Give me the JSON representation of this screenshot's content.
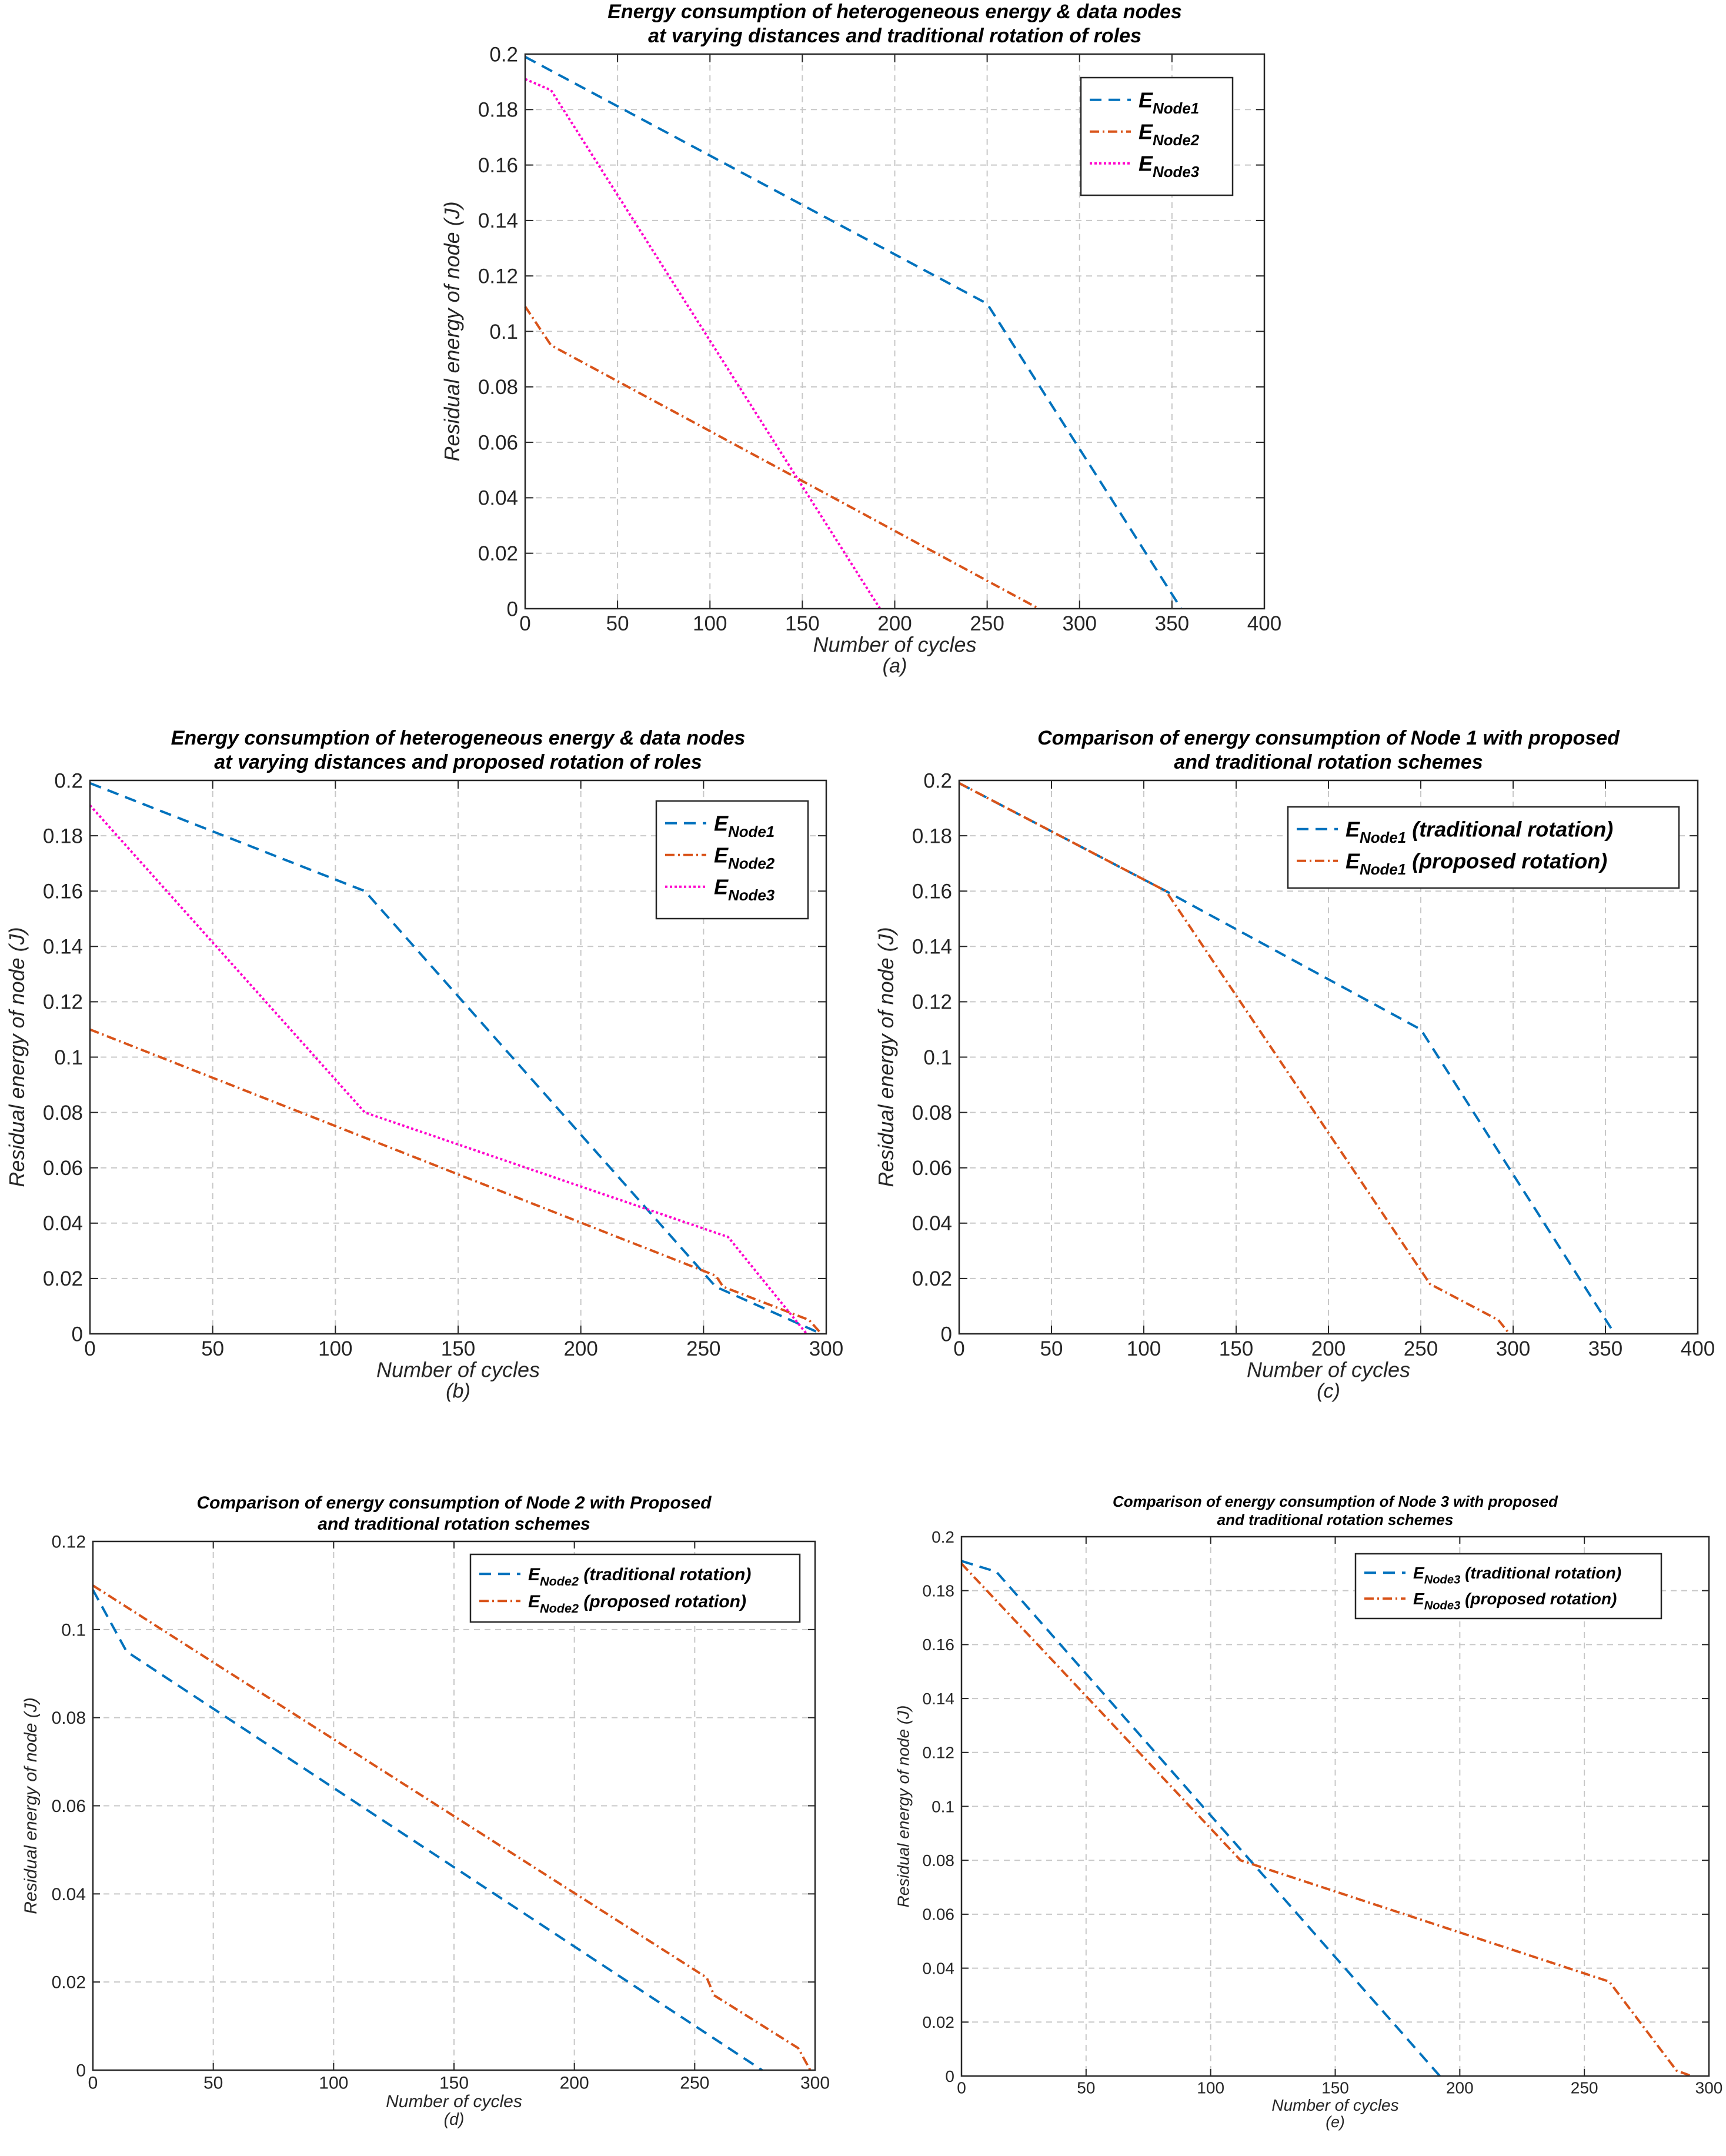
{
  "chart_data": [
    {
      "id": "a",
      "type": "line",
      "title": [
        "Energy consumption of heterogeneous energy & data nodes",
        "at varying distances and traditional rotation of roles"
      ],
      "xlabel": "Number of cycles",
      "ylabel": "Residual energy of node (J)",
      "sublabel": "(a)",
      "xlim": [
        0,
        400
      ],
      "ylim": [
        0,
        0.2
      ],
      "xticks": [
        "0",
        "50",
        "100",
        "150",
        "200",
        "250",
        "300",
        "350",
        "400"
      ],
      "xtick_values": [
        0,
        50,
        100,
        150,
        200,
        250,
        300,
        350,
        400
      ],
      "yticks": [
        "0",
        "0.02",
        "0.04",
        "0.06",
        "0.08",
        "0.1",
        "0.12",
        "0.14",
        "0.16",
        "0.18",
        "0.2"
      ],
      "ytick_values": [
        0,
        0.02,
        0.04,
        0.06,
        0.08,
        0.1,
        0.12,
        0.14,
        0.16,
        0.18,
        0.2
      ],
      "grid": true,
      "legend_position": "top-right",
      "series": [
        {
          "name": "E",
          "sub": "Node1",
          "suffix": "",
          "color": "#0072BD",
          "style": "dashed",
          "points": [
            [
              0,
              0.199
            ],
            [
              250,
              0.11
            ],
            [
              355,
              0
            ]
          ]
        },
        {
          "name": "E",
          "sub": "Node2",
          "suffix": "",
          "color": "#D95319",
          "style": "dashdot",
          "points": [
            [
              0,
              0.109
            ],
            [
              14,
              0.095
            ],
            [
              278,
              0
            ]
          ]
        },
        {
          "name": "E",
          "sub": "Node3",
          "suffix": "",
          "color": "#FF00CC",
          "style": "dotted",
          "points": [
            [
              0,
              0.191
            ],
            [
              14,
              0.187
            ],
            [
              192,
              0
            ]
          ]
        }
      ]
    },
    {
      "id": "b",
      "type": "line",
      "title": [
        "Energy consumption of heterogeneous energy & data nodes",
        "at varying distances and proposed rotation of roles"
      ],
      "xlabel": "Number of cycles",
      "ylabel": "Residual energy of node (J)",
      "sublabel": "(b)",
      "xlim": [
        0,
        300
      ],
      "ylim": [
        0,
        0.2
      ],
      "xticks": [
        "0",
        "50",
        "100",
        "150",
        "200",
        "250",
        "300"
      ],
      "xtick_values": [
        0,
        50,
        100,
        150,
        200,
        250,
        300
      ],
      "yticks": [
        "0",
        "0.02",
        "0.04",
        "0.06",
        "0.08",
        "0.1",
        "0.12",
        "0.14",
        "0.16",
        "0.18",
        "0.2"
      ],
      "ytick_values": [
        0,
        0.02,
        0.04,
        0.06,
        0.08,
        0.1,
        0.12,
        0.14,
        0.16,
        0.18,
        0.2
      ],
      "grid": true,
      "legend_position": "top-right",
      "series": [
        {
          "name": "E",
          "sub": "Node1",
          "suffix": "",
          "color": "#0072BD",
          "style": "dashed",
          "points": [
            [
              0,
              0.199
            ],
            [
              112,
              0.16
            ],
            [
              255,
              0.017
            ],
            [
              298,
              0
            ]
          ]
        },
        {
          "name": "E",
          "sub": "Node2",
          "suffix": "",
          "color": "#D95319",
          "style": "dashdot",
          "points": [
            [
              0,
              0.11
            ],
            [
              255,
              0.021
            ],
            [
              258,
              0.017
            ],
            [
              293,
              0.005
            ],
            [
              298,
              0
            ]
          ]
        },
        {
          "name": "E",
          "sub": "Node3",
          "suffix": "",
          "color": "#FF00CC",
          "style": "dotted",
          "points": [
            [
              0,
              0.191
            ],
            [
              112,
              0.08
            ],
            [
              260,
              0.035
            ],
            [
              292,
              0
            ]
          ]
        }
      ]
    },
    {
      "id": "c",
      "type": "line",
      "title": [
        "Comparison of energy consumption of Node 1 with proposed",
        "and traditional rotation schemes"
      ],
      "xlabel": "Number of cycles",
      "ylabel": "Residual energy of node (J)",
      "sublabel": "(c)",
      "xlim": [
        0,
        400
      ],
      "ylim": [
        0,
        0.2
      ],
      "xticks": [
        "0",
        "50",
        "100",
        "150",
        "200",
        "250",
        "300",
        "350",
        "400"
      ],
      "xtick_values": [
        0,
        50,
        100,
        150,
        200,
        250,
        300,
        350,
        400
      ],
      "yticks": [
        "0",
        "0.02",
        "0.04",
        "0.06",
        "0.08",
        "0.1",
        "0.12",
        "0.14",
        "0.16",
        "0.18",
        "0.2"
      ],
      "ytick_values": [
        0,
        0.02,
        0.04,
        0.06,
        0.08,
        0.1,
        0.12,
        0.14,
        0.16,
        0.18,
        0.2
      ],
      "grid": true,
      "legend_position": "top-right",
      "series": [
        {
          "name": "E",
          "sub": "Node1",
          "suffix": " (traditional rotation)",
          "color": "#0072BD",
          "style": "dashed",
          "points": [
            [
              0,
              0.199
            ],
            [
              112,
              0.16
            ],
            [
              250,
              0.11
            ],
            [
              355,
              0
            ]
          ]
        },
        {
          "name": "E",
          "sub": "Node1",
          "suffix": " (proposed rotation)",
          "color": "#D95319",
          "style": "dashdot",
          "points": [
            [
              0,
              0.199
            ],
            [
              112,
              0.16
            ],
            [
              255,
              0.018
            ],
            [
              292,
              0.005
            ],
            [
              298,
              0
            ]
          ]
        }
      ]
    },
    {
      "id": "d",
      "type": "line",
      "title": [
        "Comparison of energy consumption of Node 2 with Proposed",
        "and traditional rotation schemes"
      ],
      "xlabel": "Number of cycles",
      "ylabel": "Residual energy of node (J)",
      "sublabel": "(d)",
      "xlim": [
        0,
        300
      ],
      "ylim": [
        0,
        0.12
      ],
      "xticks": [
        "0",
        "50",
        "100",
        "150",
        "200",
        "250",
        "300"
      ],
      "xtick_values": [
        0,
        50,
        100,
        150,
        200,
        250,
        300
      ],
      "yticks": [
        "0",
        "0.02",
        "0.04",
        "0.06",
        "0.08",
        "0.1",
        "0.12"
      ],
      "ytick_values": [
        0,
        0.02,
        0.04,
        0.06,
        0.08,
        0.1,
        0.12
      ],
      "grid": true,
      "legend_position": "top-right",
      "series": [
        {
          "name": "E",
          "sub": "Node2",
          "suffix": " (traditional rotation)",
          "color": "#0072BD",
          "style": "dashed",
          "points": [
            [
              0,
              0.109
            ],
            [
              14,
              0.095
            ],
            [
              278,
              0
            ]
          ]
        },
        {
          "name": "E",
          "sub": "Node2",
          "suffix": " (proposed rotation)",
          "color": "#D95319",
          "style": "dashdot",
          "points": [
            [
              0,
              0.11
            ],
            [
              255,
              0.021
            ],
            [
              258,
              0.017
            ],
            [
              293,
              0.005
            ],
            [
              298,
              0
            ]
          ]
        }
      ]
    },
    {
      "id": "e",
      "type": "line",
      "title": [
        "Comparison of energy consumption of Node 3 with proposed",
        "and traditional rotation schemes"
      ],
      "xlabel": "Number of cycles",
      "ylabel": "Residual energy of node (J)",
      "sublabel": "(e)",
      "xlim": [
        0,
        300
      ],
      "ylim": [
        0,
        0.2
      ],
      "xticks": [
        "0",
        "50",
        "100",
        "150",
        "200",
        "250",
        "300"
      ],
      "xtick_values": [
        0,
        50,
        100,
        150,
        200,
        250,
        300
      ],
      "yticks": [
        "0",
        "0.02",
        "0.04",
        "0.06",
        "0.08",
        "0.1",
        "0.12",
        "0.14",
        "0.16",
        "0.18",
        "0.2"
      ],
      "ytick_values": [
        0,
        0.02,
        0.04,
        0.06,
        0.08,
        0.1,
        0.12,
        0.14,
        0.16,
        0.18,
        0.2
      ],
      "grid": true,
      "legend_position": "top-right",
      "series": [
        {
          "name": "E",
          "sub": "Node3",
          "suffix": " (traditional rotation)",
          "color": "#0072BD",
          "style": "dashed",
          "points": [
            [
              0,
              0.191
            ],
            [
              14,
              0.187
            ],
            [
              192,
              0
            ]
          ]
        },
        {
          "name": "E",
          "sub": "Node3",
          "suffix": " (proposed rotation)",
          "color": "#D95319",
          "style": "dashdot",
          "points": [
            [
              0,
              0.19
            ],
            [
              112,
              0.08
            ],
            [
              260,
              0.035
            ],
            [
              287,
              0.002
            ],
            [
              293,
              0
            ]
          ]
        }
      ]
    }
  ]
}
